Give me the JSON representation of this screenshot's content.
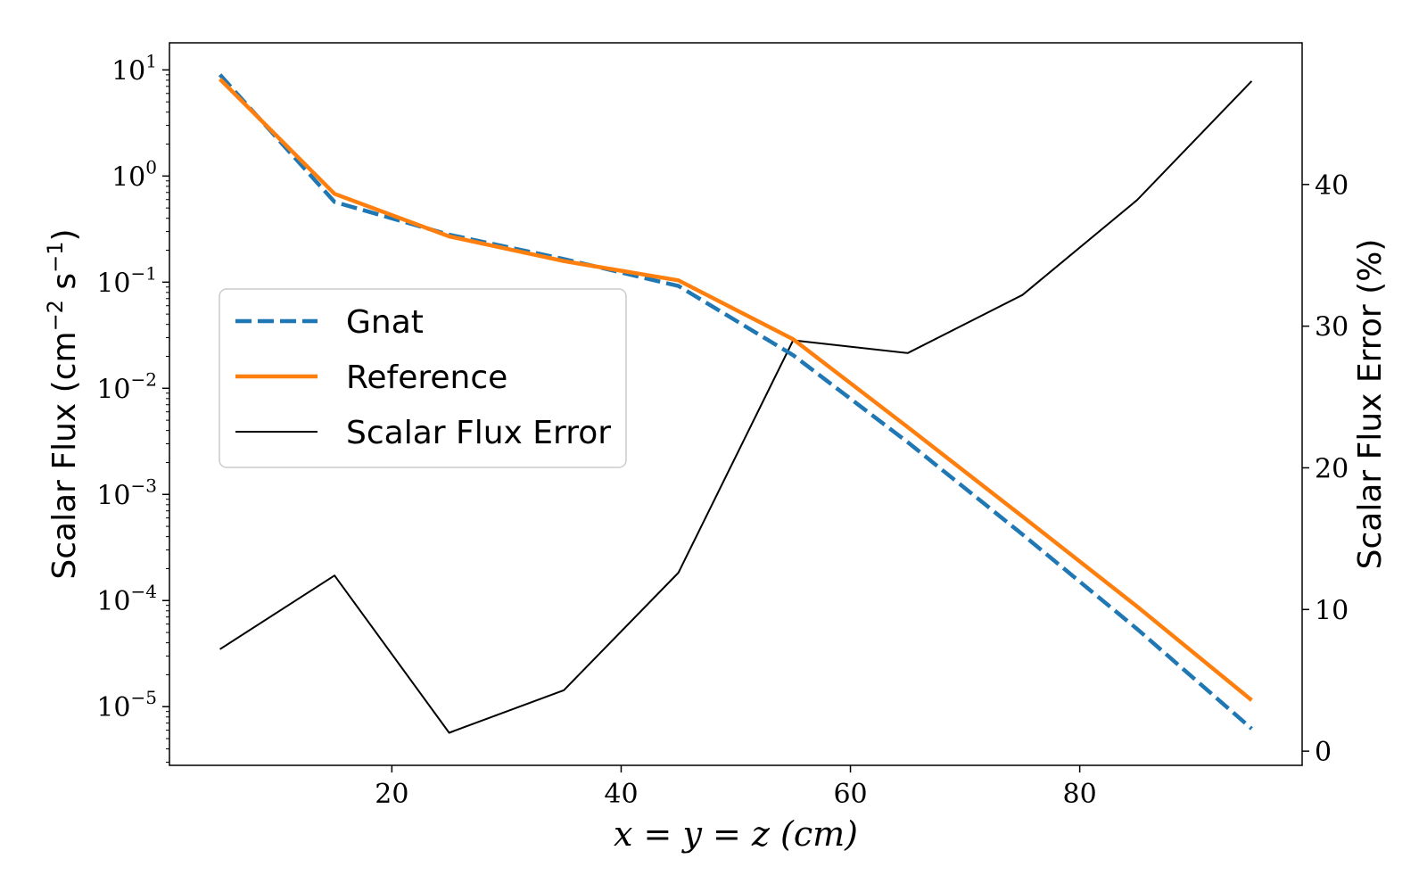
{
  "chart_data": {
    "type": "line",
    "xlabel": "x = y = z (cm)",
    "ylabel_left": "Scalar Flux (cm⁻² s⁻¹)",
    "ylabel_left_main": "Scalar Flux (cm",
    "ylabel_left_exp1": "−2",
    "ylabel_left_mid": " s",
    "ylabel_left_exp2": "−1",
    "ylabel_left_end": ")",
    "ylabel_right": "Scalar Flux Error (%)",
    "x": [
      5,
      15,
      25,
      35,
      45,
      55,
      65,
      75,
      85,
      95
    ],
    "xlim": [
      0.6,
      99.4
    ],
    "xticks": [
      20,
      40,
      60,
      80
    ],
    "y_left_scale": "log",
    "y_left_lim": [
      2.8e-06,
      18
    ],
    "y_left_ticks": [
      {
        "value": 10,
        "base": "10",
        "exp": "1"
      },
      {
        "value": 1,
        "base": "10",
        "exp": "0"
      },
      {
        "value": 0.1,
        "base": "10",
        "exp": "−1"
      },
      {
        "value": 0.01,
        "base": "10",
        "exp": "−2"
      },
      {
        "value": 0.001,
        "base": "10",
        "exp": "−3"
      },
      {
        "value": 0.0001,
        "base": "10",
        "exp": "−4"
      },
      {
        "value": 1e-05,
        "base": "10",
        "exp": "−5"
      }
    ],
    "y_right_lim": [
      -1,
      50
    ],
    "y_right_ticks": [
      0,
      10,
      20,
      30,
      40
    ],
    "series": [
      {
        "name": "Gnat",
        "axis": "left",
        "style": "dashed",
        "color": "#1f77b4",
        "values": [
          9.0,
          0.57,
          0.28,
          0.165,
          0.092,
          0.0205,
          0.0031,
          0.00042,
          5.4e-05,
          6.2e-06
        ]
      },
      {
        "name": "Reference",
        "axis": "left",
        "style": "solid",
        "color": "#ff7f0e",
        "values": [
          8.2,
          0.68,
          0.27,
          0.158,
          0.104,
          0.029,
          0.0043,
          0.00062,
          8.8e-05,
          1.15e-05
        ]
      },
      {
        "name": "Scalar Flux Error",
        "axis": "right",
        "style": "solid",
        "color": "#000000",
        "values": [
          7.2,
          12.4,
          1.3,
          4.3,
          12.6,
          29.0,
          28.1,
          32.2,
          38.9,
          47.3
        ]
      }
    ],
    "legend": {
      "position": "center-left",
      "entries": [
        "Gnat",
        "Reference",
        "Scalar Flux Error"
      ]
    },
    "grid": false
  }
}
